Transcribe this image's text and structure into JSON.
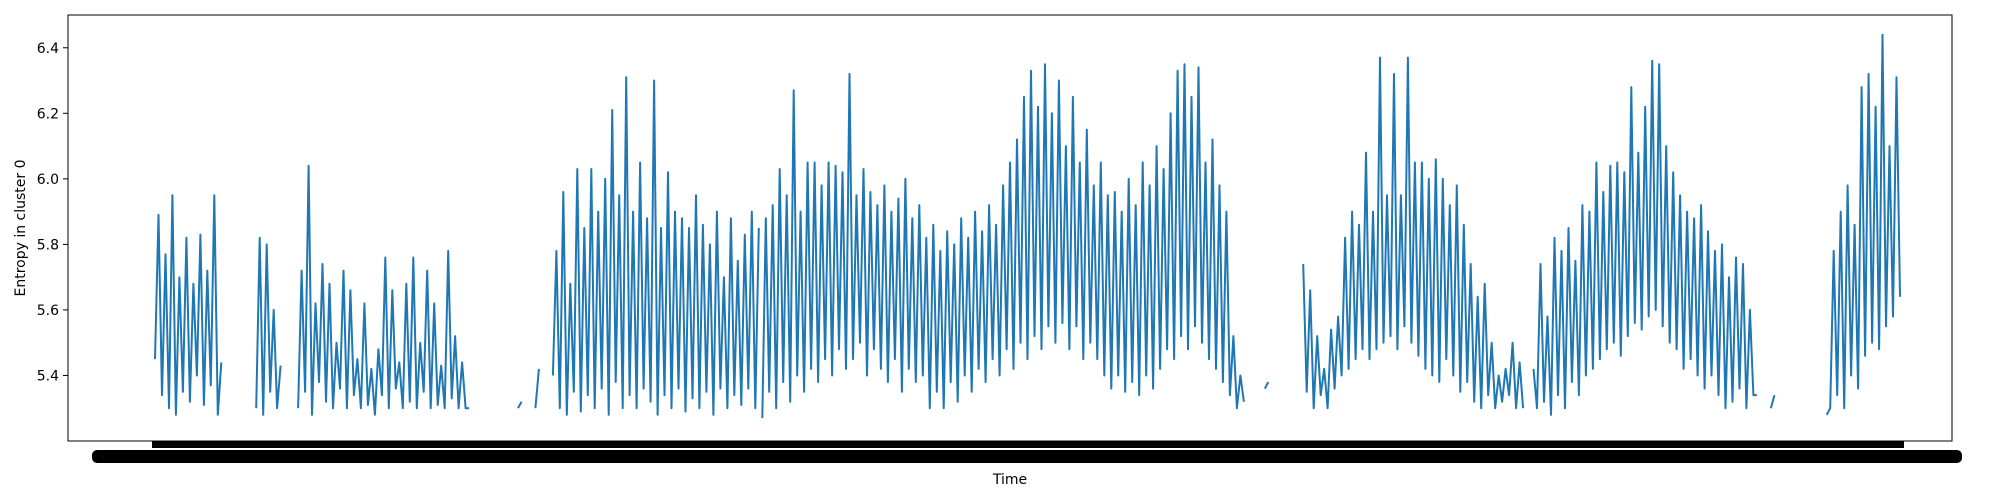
{
  "chart_data": {
    "type": "line",
    "title": "",
    "xlabel": "Time",
    "ylabel": "Entropy in cluster 0",
    "ylim": [
      5.2,
      6.5
    ],
    "yticks": [
      5.4,
      5.6,
      5.8,
      6.0,
      6.2,
      6.4
    ],
    "xlim": [
      0,
      1000
    ],
    "grid": false,
    "legend": "none",
    "series_color": "#1f77b4",
    "series": [
      {
        "name": "",
        "segments": [
          {
            "x": [
              0,
              2,
              4,
              6,
              8,
              10,
              12,
              14,
              16,
              18,
              20,
              22,
              24,
              26,
              28,
              30,
              32,
              34,
              36,
              38
            ],
            "y": [
              5.45,
              5.89,
              5.34,
              5.77,
              5.3,
              5.95,
              5.28,
              5.7,
              5.35,
              5.82,
              5.32,
              5.68,
              5.4,
              5.83,
              5.31,
              5.72,
              5.37,
              5.95,
              5.28,
              5.44
            ]
          },
          {
            "x": [
              58,
              60,
              62,
              64,
              66,
              68,
              70,
              72
            ],
            "y": [
              5.3,
              5.82,
              5.28,
              5.8,
              5.35,
              5.6,
              5.3,
              5.43
            ]
          },
          {
            "x": [
              82,
              84,
              86,
              88,
              90,
              92,
              94,
              96,
              98,
              100,
              102,
              104,
              106,
              108,
              110,
              112,
              114,
              116,
              118,
              120,
              122,
              124,
              126,
              128,
              130,
              132,
              134,
              136,
              138,
              140,
              142,
              144,
              146,
              148,
              150,
              152,
              154,
              156,
              158,
              160,
              162,
              164,
              166,
              168,
              170,
              172,
              174,
              176,
              178,
              180
            ],
            "y": [
              5.3,
              5.72,
              5.35,
              6.04,
              5.28,
              5.62,
              5.38,
              5.74,
              5.32,
              5.68,
              5.3,
              5.5,
              5.36,
              5.72,
              5.3,
              5.66,
              5.34,
              5.45,
              5.3,
              5.62,
              5.31,
              5.42,
              5.28,
              5.48,
              5.34,
              5.76,
              5.3,
              5.66,
              5.36,
              5.44,
              5.3,
              5.68,
              5.32,
              5.76,
              5.3,
              5.5,
              5.35,
              5.72,
              5.3,
              5.62,
              5.31,
              5.43,
              5.3,
              5.78,
              5.33,
              5.52,
              5.3,
              5.44,
              5.3,
              5.3
            ]
          },
          {
            "x": [
              208,
              210
            ],
            "y": [
              5.3,
              5.32
            ]
          },
          {
            "x": [
              218,
              220
            ],
            "y": [
              5.3,
              5.42
            ]
          },
          {
            "x": [
              228,
              230,
              232,
              234,
              236,
              238,
              240,
              242,
              244,
              246,
              248,
              250,
              252,
              254,
              256,
              258,
              260,
              262,
              264,
              266,
              268,
              270,
              272,
              274,
              276,
              278,
              280,
              282,
              284,
              286,
              288,
              290,
              292,
              294,
              296,
              298,
              300,
              302,
              304,
              306,
              308,
              310,
              312,
              314,
              316,
              318,
              320,
              322,
              324,
              326,
              328,
              330,
              332,
              334,
              336,
              338,
              340,
              342,
              344,
              346
            ],
            "y": [
              5.4,
              5.78,
              5.3,
              5.96,
              5.28,
              5.68,
              5.35,
              6.03,
              5.29,
              5.85,
              5.34,
              6.03,
              5.3,
              5.9,
              5.36,
              6.0,
              5.28,
              6.21,
              5.38,
              5.95,
              5.3,
              6.31,
              5.34,
              5.9,
              5.3,
              6.05,
              5.36,
              5.88,
              5.32,
              6.3,
              5.28,
              5.85,
              5.34,
              6.02,
              5.3,
              5.9,
              5.36,
              5.88,
              5.29,
              5.85,
              5.33,
              5.95,
              5.3,
              5.86,
              5.35,
              5.8,
              5.28,
              5.9,
              5.36,
              5.7,
              5.3,
              5.88,
              5.34,
              5.75,
              5.31,
              5.83,
              5.36,
              5.9,
              5.3,
              5.85
            ]
          },
          {
            "x": [
              348,
              350,
              352,
              354,
              356,
              358,
              360,
              362,
              364,
              366,
              368,
              370,
              372,
              374,
              376,
              378,
              380,
              382,
              384,
              386,
              388,
              390,
              392,
              394,
              396,
              398,
              400,
              402,
              404,
              406,
              408,
              410,
              412,
              414,
              416,
              418,
              420,
              422,
              424,
              426,
              428,
              430,
              432,
              434,
              436,
              438,
              440,
              442,
              444,
              446,
              448,
              450,
              452,
              454,
              456,
              458,
              460,
              462,
              464,
              466,
              468,
              470,
              472,
              474,
              476,
              478,
              480,
              482,
              484,
              486,
              488,
              490,
              492,
              494,
              496,
              498,
              500,
              502,
              504,
              506,
              508,
              510,
              512,
              514,
              516,
              518,
              520,
              522,
              524,
              526,
              528,
              530,
              532,
              534,
              536,
              538,
              540,
              542,
              544,
              546,
              548,
              550,
              552,
              554,
              556,
              558,
              560,
              562,
              564,
              566,
              568,
              570,
              572,
              574,
              576,
              578,
              580,
              582,
              584,
              586,
              588,
              590,
              592,
              594,
              596,
              598,
              600,
              602,
              604,
              606,
              608,
              610,
              612,
              614,
              616,
              618,
              620,
              622,
              624
            ],
            "y": [
              5.27,
              5.88,
              5.35,
              5.92,
              5.3,
              6.03,
              5.38,
              5.95,
              5.32,
              6.27,
              5.4,
              5.9,
              5.35,
              6.05,
              5.42,
              6.05,
              5.38,
              5.98,
              5.45,
              6.05,
              5.4,
              6.04,
              5.48,
              6.02,
              5.42,
              6.32,
              5.45,
              5.95,
              5.5,
              6.03,
              5.4,
              5.96,
              5.48,
              5.92,
              5.42,
              5.98,
              5.38,
              5.9,
              5.45,
              5.94,
              5.35,
              6.0,
              5.42,
              5.88,
              5.38,
              5.92,
              5.4,
              5.82,
              5.3,
              5.86,
              5.35,
              5.78,
              5.3,
              5.84,
              5.38,
              5.8,
              5.32,
              5.88,
              5.4,
              5.82,
              5.35,
              5.9,
              5.42,
              5.84,
              5.38,
              5.92,
              5.45,
              5.86,
              5.4,
              5.98,
              5.48,
              6.05,
              5.42,
              6.12,
              5.5,
              6.25,
              5.45,
              6.33,
              5.52,
              6.22,
              5.48,
              6.35,
              5.55,
              6.2,
              5.5,
              6.3,
              5.56,
              6.1,
              5.48,
              6.25,
              5.55,
              6.05,
              5.45,
              6.15,
              5.5,
              5.98,
              5.45,
              6.05,
              5.4,
              5.95,
              5.36,
              5.96,
              5.4,
              5.9,
              5.35,
              6.0,
              5.38,
              5.92,
              5.34,
              6.05,
              5.4,
              5.98,
              5.36,
              6.1,
              5.42,
              6.03,
              5.48,
              6.2,
              5.45,
              6.33,
              5.52,
              6.35,
              5.48,
              6.25,
              5.55,
              6.34,
              5.5,
              6.05,
              5.45,
              6.12,
              5.42,
              5.98,
              5.38,
              5.9,
              5.34,
              5.52,
              5.3,
              5.4,
              5.32
            ]
          },
          {
            "x": [
              636,
              638
            ],
            "y": [
              5.36,
              5.38
            ]
          },
          {
            "x": [
              658,
              660,
              662,
              664,
              666,
              668,
              670,
              672,
              674,
              676,
              678,
              680,
              682,
              684,
              686,
              688,
              690,
              692,
              694,
              696,
              698,
              700,
              702,
              704,
              706,
              708,
              710,
              712,
              714,
              716,
              718,
              720,
              722,
              724,
              726,
              728,
              730,
              732,
              734,
              736,
              738,
              740,
              742,
              744,
              746,
              748,
              750,
              752,
              754,
              756,
              758,
              760,
              762,
              764,
              766,
              768,
              770,
              772,
              774,
              776,
              778,
              780,
              782,
              784
            ],
            "y": [
              5.74,
              5.35,
              5.66,
              5.3,
              5.52,
              5.34,
              5.42,
              5.3,
              5.54,
              5.36,
              5.58,
              5.4,
              5.82,
              5.42,
              5.9,
              5.45,
              5.86,
              5.48,
              6.08,
              5.45,
              5.9,
              5.48,
              6.37,
              5.5,
              5.95,
              5.52,
              6.32,
              5.48,
              5.95,
              5.55,
              6.37,
              5.5,
              6.05,
              5.46,
              6.05,
              5.42,
              6.0,
              5.4,
              6.06,
              5.38,
              6.0,
              5.45,
              5.92,
              5.4,
              5.98,
              5.35,
              5.86,
              5.38,
              5.74,
              5.32,
              5.64,
              5.3,
              5.68,
              5.34,
              5.5,
              5.3,
              5.4,
              5.32,
              5.42,
              5.34,
              5.5,
              5.3,
              5.44,
              5.3
            ]
          },
          {
            "x": [
              790,
              792,
              794,
              796,
              798,
              800,
              802,
              804,
              806,
              808,
              810,
              812,
              814,
              816,
              818,
              820,
              822,
              824,
              826,
              828,
              830,
              832,
              834,
              836,
              838,
              840,
              842,
              844,
              846,
              848,
              850,
              852,
              854,
              856,
              858,
              860,
              862,
              864,
              866,
              868,
              870,
              872,
              874,
              876,
              878,
              880,
              882,
              884,
              886,
              888,
              890,
              892,
              894,
              896,
              898,
              900,
              902,
              904,
              906,
              908,
              910,
              912,
              914,
              916,
              918
            ],
            "y": [
              5.42,
              5.3,
              5.74,
              5.32,
              5.58,
              5.28,
              5.82,
              5.34,
              5.78,
              5.3,
              5.85,
              5.38,
              5.75,
              5.34,
              5.92,
              5.4,
              5.9,
              5.42,
              6.05,
              5.45,
              5.96,
              5.48,
              6.04,
              5.5,
              6.05,
              5.46,
              6.02,
              5.52,
              6.28,
              5.56,
              6.08,
              5.54,
              6.22,
              5.58,
              6.36,
              5.6,
              6.35,
              5.55,
              6.1,
              5.5,
              6.02,
              5.48,
              5.95,
              5.42,
              5.9,
              5.45,
              5.88,
              5.4,
              5.92,
              5.36,
              5.84,
              5.4,
              5.78,
              5.34,
              5.8,
              5.3,
              5.7,
              5.32,
              5.76,
              5.36,
              5.74,
              5.3,
              5.6,
              5.34,
              5.34
            ]
          },
          {
            "x": [
              926,
              928
            ],
            "y": [
              5.3,
              5.34
            ]
          },
          {
            "x": [
              958,
              960,
              962,
              964,
              966,
              968,
              970,
              972,
              974,
              976,
              978,
              980,
              982,
              984,
              986,
              988,
              990,
              992,
              994,
              996,
              998,
              1000
            ],
            "y": [
              5.28,
              5.3,
              5.78,
              5.34,
              5.9,
              5.3,
              5.98,
              5.4,
              5.86,
              5.36,
              6.28,
              5.46,
              6.32,
              5.5,
              6.22,
              5.48,
              6.44,
              5.55,
              6.1,
              5.58,
              6.31,
              5.64
            ]
          }
        ]
      }
    ]
  }
}
